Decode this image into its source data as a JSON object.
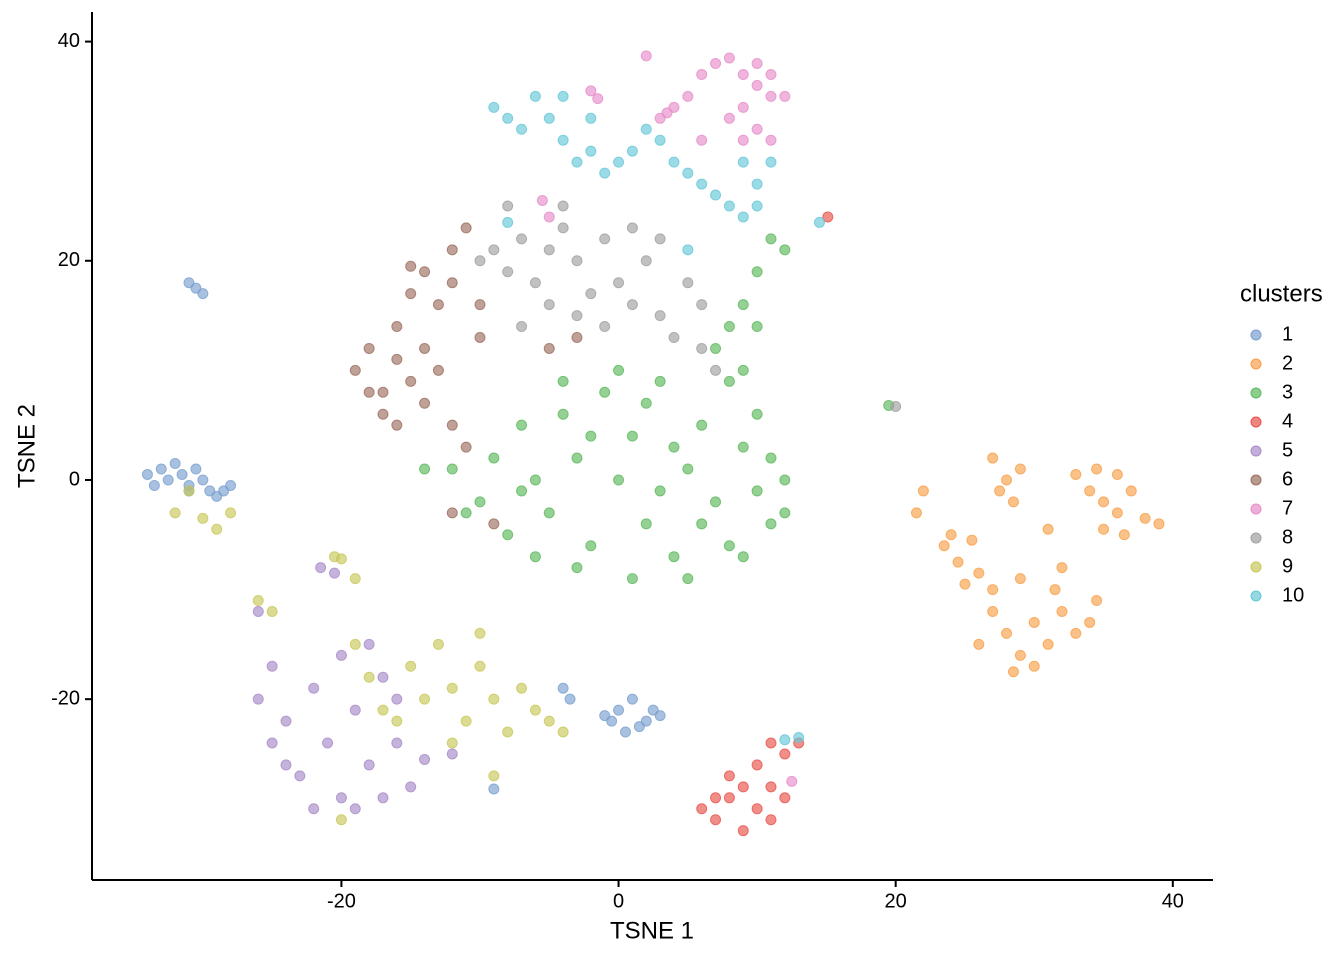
{
  "chart_data": {
    "type": "scatter",
    "x_label": "TSNE 1",
    "y_label": "TSNE 2",
    "legend_title": "clusters",
    "legend_position": "right",
    "xlim": [
      -38,
      42.9
    ],
    "ylim": [
      -36.5,
      42.7
    ],
    "xticks": [
      -20,
      0,
      20,
      40
    ],
    "yticks": [
      -20,
      0,
      20,
      40
    ],
    "series": [
      {
        "name": "1",
        "color": "#7aa0d0",
        "x": [
          -34,
          -33,
          -32.5,
          -32,
          -31.5,
          -31,
          -30.5,
          -30,
          -29.5,
          -29,
          -28.5,
          -28,
          -31,
          -33.5,
          -31,
          -30.5,
          -30,
          -1,
          0,
          1,
          2,
          2.5,
          1.5,
          0.5,
          -0.5,
          3,
          -4,
          -3.5,
          -9
        ],
        "y": [
          0.5,
          1,
          0,
          1.5,
          0.5,
          -0.5,
          1,
          0,
          -1,
          -1.5,
          -1,
          -0.5,
          -1,
          -0.5,
          18,
          17.5,
          17,
          -21.5,
          -21,
          -20,
          -22,
          -21,
          -22.5,
          -23,
          -22,
          -21.5,
          -19,
          -20,
          -28.2
        ]
      },
      {
        "name": "2",
        "color": "#f8a04a",
        "x": [
          23.5,
          24.5,
          25.5,
          26,
          25,
          24,
          21.5,
          22,
          27,
          28,
          29,
          28.5,
          27.5,
          33,
          34,
          35,
          36,
          37,
          38,
          36.5,
          35,
          39,
          34.5,
          36,
          27,
          28,
          29,
          30,
          31,
          32,
          33,
          34,
          30,
          28.5,
          31.5,
          26,
          27,
          29,
          32,
          34.5,
          31
        ],
        "y": [
          -6,
          -7.5,
          -5.5,
          -8.5,
          -9.5,
          -5,
          -3,
          -1,
          2,
          0,
          1,
          -2,
          -1,
          0.5,
          -1,
          -2,
          -3,
          -1,
          -3.5,
          -5,
          -4.5,
          -4,
          1,
          0.5,
          -12,
          -14,
          -16,
          -13,
          -15,
          -12,
          -14,
          -13,
          -17,
          -17.5,
          -10,
          -15,
          -10,
          -9,
          -8,
          -11,
          -4.5
        ]
      },
      {
        "name": "3",
        "color": "#5cb95c",
        "x": [
          -10,
          -9,
          -8,
          -7,
          -6,
          -5,
          -4,
          -3,
          -2,
          -1,
          0,
          1,
          2,
          3,
          4,
          5,
          6,
          7,
          8,
          9,
          10,
          11,
          12,
          -11,
          -3,
          1,
          5,
          9,
          -6,
          -2,
          3,
          6,
          10,
          8,
          0,
          -4,
          -12,
          2,
          -7,
          4,
          11,
          12,
          7,
          8,
          9,
          10,
          11,
          12,
          10,
          9,
          19.5,
          -14
        ],
        "y": [
          -2,
          2,
          -5,
          5,
          0,
          -3,
          6,
          2,
          -6,
          8,
          0,
          4,
          -4,
          9,
          -7,
          1,
          5,
          -2,
          -6,
          3,
          -1,
          -4,
          0,
          -3,
          -8,
          -9,
          -9,
          -7,
          -7,
          4,
          -1,
          -4,
          6,
          9,
          10,
          9,
          1,
          7,
          -1,
          3,
          2,
          -3,
          12,
          14,
          16,
          19,
          22,
          21,
          14,
          10,
          6.8,
          1
        ]
      },
      {
        "name": "4",
        "color": "#e8534a",
        "x": [
          6,
          7,
          8,
          9,
          10,
          11,
          8,
          10,
          12,
          11,
          9,
          7,
          12,
          13,
          11,
          15.1
        ],
        "y": [
          -30,
          -31,
          -29,
          -32,
          -30,
          -28,
          -27,
          -26,
          -25,
          -31,
          -28,
          -29,
          -29,
          -24,
          -24,
          24
        ]
      },
      {
        "name": "5",
        "color": "#a88bc8",
        "x": [
          -26,
          -25,
          -24,
          -23,
          -22,
          -21,
          -20,
          -19,
          -18,
          -17,
          -16,
          -15,
          -24,
          -22,
          -20,
          -18,
          -25,
          -19,
          -16,
          -17,
          -21.5,
          -20.5,
          -26,
          -12,
          -14
        ],
        "y": [
          -20,
          -17,
          -22,
          -27,
          -19,
          -24,
          -29,
          -21,
          -26,
          -18,
          -24,
          -28,
          -26,
          -30,
          -16,
          -15,
          -24,
          -30,
          -20,
          -29,
          -8,
          -8.5,
          -12,
          -25,
          -25.5
        ]
      },
      {
        "name": "6",
        "color": "#9c6e5f",
        "x": [
          -19,
          -18,
          -17,
          -16,
          -18,
          -17,
          -15,
          -14,
          -16,
          -13,
          -14,
          -16,
          -15,
          -14,
          -13,
          -12,
          -11,
          -12,
          -10,
          -15,
          -12,
          -11,
          -10,
          -9,
          -12,
          -5,
          -3
        ],
        "y": [
          10,
          12,
          8,
          11,
          8,
          6,
          9,
          12,
          14,
          10,
          7,
          5,
          17,
          19,
          16,
          21,
          23,
          18,
          16,
          19.5,
          5,
          3,
          13,
          -4,
          -3,
          12,
          13
        ]
      },
      {
        "name": "7",
        "color": "#e68dc9",
        "x": [
          2,
          3,
          4,
          5,
          6,
          7,
          8,
          9,
          10,
          11,
          9,
          10,
          11,
          9,
          8,
          10,
          11,
          12,
          6,
          3.5,
          -2,
          -1.5,
          -5.5,
          -5,
          12.5
        ],
        "y": [
          38.7,
          33,
          34,
          35,
          37,
          38,
          38.5,
          37,
          36,
          35,
          34,
          32,
          31,
          31,
          33,
          38,
          37,
          35,
          31,
          33.5,
          35.5,
          34.8,
          25.5,
          24,
          -27.5
        ]
      },
      {
        "name": "8",
        "color": "#a0a0a0",
        "x": [
          -10,
          -9,
          -8,
          -7,
          -6,
          -5,
          -4,
          -3,
          -2,
          -1,
          0,
          1,
          2,
          3,
          4,
          5,
          6,
          7,
          -3,
          -1,
          3,
          -5,
          1,
          6,
          -4,
          -8,
          20,
          -7
        ],
        "y": [
          20,
          21,
          19,
          22,
          18,
          21,
          23,
          20,
          17,
          22,
          18,
          16,
          20,
          15,
          13,
          18,
          12,
          10,
          15,
          14,
          22,
          16,
          23,
          16,
          25,
          25,
          6.7,
          14
        ]
      },
      {
        "name": "9",
        "color": "#c8c85a",
        "x": [
          -32,
          -30,
          -29,
          -28,
          -31,
          -15,
          -14,
          -13,
          -12,
          -11,
          -10,
          -9,
          -8,
          -10,
          -12,
          -7,
          -16,
          -18,
          -19,
          -17,
          -6,
          -5,
          -4,
          -20.5,
          -20,
          -19,
          -9,
          -20,
          -26,
          -25
        ],
        "y": [
          -3,
          -3.5,
          -4.5,
          -3,
          -1,
          -17,
          -20,
          -15,
          -19,
          -22,
          -17,
          -20,
          -23,
          -14,
          -24,
          -19,
          -22,
          -18,
          -15,
          -21,
          -21,
          -22,
          -23,
          -7,
          -7.2,
          -9,
          -27,
          -31,
          -11,
          -12
        ]
      },
      {
        "name": "10",
        "color": "#66c7d8",
        "x": [
          -9,
          -8,
          -7,
          -6,
          -5,
          -4,
          -3,
          -2,
          -1,
          0,
          1,
          2,
          3,
          4,
          -4,
          -2,
          5,
          6,
          7,
          8,
          9,
          10,
          11,
          9,
          10,
          5,
          14.5,
          13,
          12,
          -8
        ],
        "y": [
          34,
          33,
          32,
          35,
          33,
          31,
          29,
          30,
          28,
          29,
          30,
          32,
          31,
          29,
          35,
          33,
          28,
          27,
          26,
          25,
          24,
          27,
          29,
          29,
          25,
          21,
          23.5,
          -23.5,
          -23.7,
          23.5
        ]
      }
    ]
  }
}
